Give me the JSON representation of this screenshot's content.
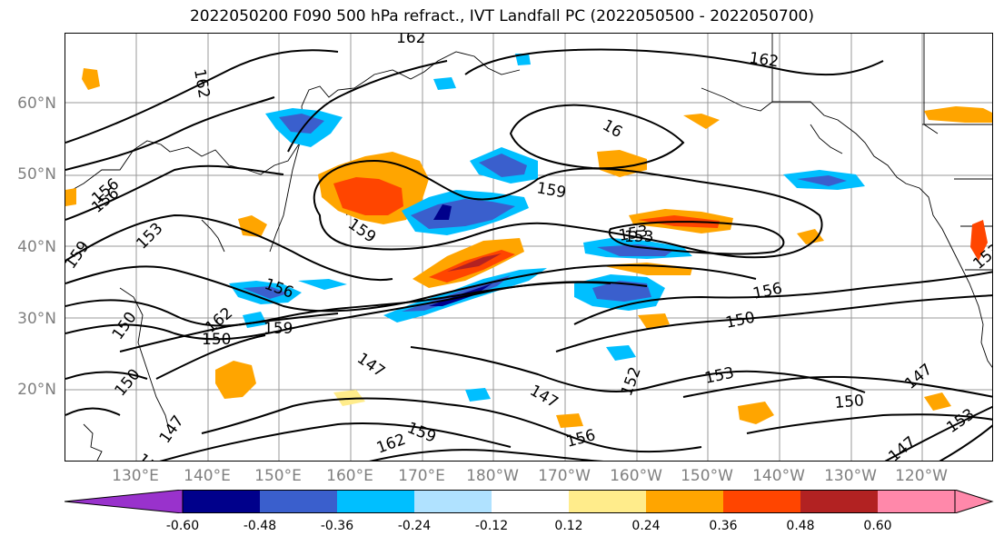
{
  "title": "2022050200 F090 500 hPa refract., IVT Landfall PC (2022050500 - 2022050700)",
  "lat_labels": [
    "60°N",
    "50°N",
    "40°N",
    "30°N",
    "20°N"
  ],
  "lon_labels": [
    "130°E",
    "140°E",
    "150°E",
    "160°E",
    "170°E",
    "180°W",
    "170°W",
    "160°W",
    "150°W",
    "140°W",
    "130°W",
    "120°W"
  ],
  "contour_labels": [
    "162",
    "162",
    "162",
    "16",
    "159",
    "159",
    "156",
    "156",
    "153",
    "153",
    "159",
    "150",
    "162",
    "159",
    "156",
    "153",
    "150",
    "147",
    "147",
    "150",
    "159",
    "162",
    "156",
    "147",
    "150",
    "156",
    "153",
    "150",
    "147",
    "153",
    "147",
    "152",
    "153",
    "150"
  ],
  "colorbar": {
    "ticks": [
      "-0.60",
      "-0.48",
      "-0.36",
      "-0.24",
      "-0.12",
      "0.12",
      "0.24",
      "0.36",
      "0.48",
      "0.60"
    ],
    "colors": [
      "#9932cc",
      "#00008b",
      "#3a5fcd",
      "#00bfff",
      "#b0e2ff",
      "#ffffff",
      "#ffec8b",
      "#ffa500",
      "#ff4500",
      "#b22222",
      "#ff88aa"
    ]
  }
}
